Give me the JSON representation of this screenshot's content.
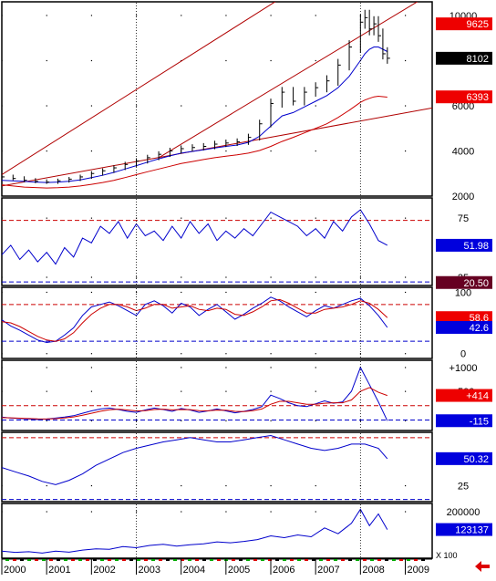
{
  "colors": {
    "price": "#000000",
    "ma_fast": "#0000cc",
    "ma_slow": "#cc0000",
    "trend": "#b00000",
    "dotted": "#000000",
    "badge_red": "#ee0000",
    "badge_black": "#000000",
    "badge_blue": "#0000dd",
    "badge_maroon": "#660022",
    "arrow": "#dd0000"
  },
  "xaxis": {
    "labels": [
      "2000",
      "2001",
      "2002",
      "2003",
      "2004",
      "2005",
      "2006",
      "2007",
      "2008",
      "2009"
    ],
    "unit_label": "X 100",
    "range": [
      2000.0,
      2009.6
    ]
  },
  "chart_data": [
    {
      "type": "line",
      "name": "price",
      "yrange": [
        2000,
        10600
      ],
      "yticks": [
        "10000",
        "8000",
        "6000",
        "4000",
        "2000"
      ],
      "ytick_values": [
        10000,
        8000,
        6000,
        4000,
        2000
      ],
      "badges": [
        {
          "text": "9625",
          "value": 9625,
          "color": "badge_red"
        },
        {
          "text": "8102",
          "value": 8102,
          "color": "badge_black"
        },
        {
          "text": "6393",
          "value": 6393,
          "color": "badge_red"
        }
      ],
      "x": [
        2000.0,
        2000.25,
        2000.5,
        2000.75,
        2001.0,
        2001.25,
        2001.5,
        2001.75,
        2002.0,
        2002.25,
        2002.5,
        2002.75,
        2003.0,
        2003.25,
        2003.5,
        2003.75,
        2004.0,
        2004.25,
        2004.5,
        2004.75,
        2005.0,
        2005.25,
        2005.5,
        2005.75,
        2006.0,
        2006.25,
        2006.5,
        2006.75,
        2007.0,
        2007.25,
        2007.5,
        2007.75,
        2008.0,
        2008.1,
        2008.2,
        2008.3,
        2008.4,
        2008.5,
        2008.6
      ],
      "close": [
        2850,
        2780,
        2700,
        2650,
        2620,
        2680,
        2750,
        2850,
        3000,
        3120,
        3250,
        3400,
        3550,
        3700,
        3850,
        4000,
        4100,
        4150,
        4200,
        4300,
        4350,
        4400,
        4600,
        5200,
        6100,
        6600,
        6200,
        6600,
        6800,
        7100,
        7800,
        8600,
        9700,
        9900,
        9400,
        9625,
        9100,
        8300,
        8102
      ],
      "series": [
        {
          "name": "ma_fast",
          "values": [
            2700,
            2680,
            2650,
            2620,
            2600,
            2620,
            2660,
            2720,
            2820,
            2920,
            3050,
            3200,
            3350,
            3500,
            3650,
            3780,
            3900,
            3980,
            4050,
            4130,
            4200,
            4260,
            4380,
            4650,
            5100,
            5550,
            5700,
            5950,
            6200,
            6450,
            6800,
            7300,
            8000,
            8300,
            8500,
            8600,
            8600,
            8500,
            8400
          ]
        },
        {
          "name": "ma_slow",
          "values": [
            2500,
            2450,
            2400,
            2380,
            2360,
            2370,
            2400,
            2450,
            2520,
            2600,
            2700,
            2820,
            2950,
            3080,
            3200,
            3320,
            3440,
            3530,
            3620,
            3700,
            3770,
            3830,
            3900,
            4020,
            4200,
            4420,
            4600,
            4800,
            5000,
            5200,
            5480,
            5800,
            6150,
            6250,
            6330,
            6393,
            6420,
            6400,
            6380
          ]
        }
      ],
      "trendlines": [
        {
          "x": [
            2000.0,
            2009.6
          ],
          "y": [
            2950,
            15000
          ]
        },
        {
          "x": [
            2003.5,
            2009.6
          ],
          "y": [
            3700,
            11000
          ]
        },
        {
          "x": [
            2000.0,
            2009.6
          ],
          "y": [
            2450,
            5900
          ]
        }
      ]
    },
    {
      "type": "line",
      "name": "panel2",
      "yrange": [
        18,
        92
      ],
      "yticks": [
        "75",
        "25"
      ],
      "ytick_values": [
        75,
        25
      ],
      "ref_lines": [
        {
          "value": 73,
          "color": "ma_slow"
        },
        {
          "value": 21,
          "color": "ma_fast"
        }
      ],
      "badges": [
        {
          "text": "51.98",
          "value": 51.98,
          "color": "badge_blue"
        },
        {
          "text": "20.50",
          "value": 20.5,
          "color": "badge_maroon"
        }
      ],
      "x": [
        2000.0,
        2000.2,
        2000.4,
        2000.6,
        2000.8,
        2001.0,
        2001.2,
        2001.4,
        2001.6,
        2001.8,
        2002.0,
        2002.2,
        2002.4,
        2002.6,
        2002.8,
        2003.0,
        2003.2,
        2003.4,
        2003.6,
        2003.8,
        2004.0,
        2004.2,
        2004.4,
        2004.6,
        2004.8,
        2005.0,
        2005.2,
        2005.4,
        2005.6,
        2005.8,
        2006.0,
        2006.2,
        2006.4,
        2006.6,
        2006.8,
        2007.0,
        2007.2,
        2007.4,
        2007.6,
        2007.8,
        2008.0,
        2008.2,
        2008.4,
        2008.6
      ],
      "series": [
        {
          "name": "line",
          "values": [
            44,
            52,
            40,
            48,
            38,
            46,
            36,
            50,
            42,
            58,
            54,
            68,
            62,
            72,
            58,
            70,
            60,
            64,
            56,
            68,
            58,
            72,
            62,
            70,
            56,
            64,
            58,
            66,
            60,
            70,
            80,
            76,
            72,
            68,
            60,
            66,
            58,
            72,
            64,
            76,
            82,
            70,
            56,
            51.98
          ]
        }
      ]
    },
    {
      "type": "line",
      "name": "panel3",
      "yrange": [
        -8,
        108
      ],
      "yticks": [
        "100",
        "0"
      ],
      "ytick_values": [
        100,
        0
      ],
      "ref_lines": [
        {
          "value": 80,
          "color": "ma_slow"
        },
        {
          "value": 20,
          "color": "ma_fast"
        }
      ],
      "badges": [
        {
          "text": "58.6",
          "value": 58.6,
          "color": "badge_red"
        },
        {
          "text": "42.6",
          "value": 42.6,
          "color": "badge_blue"
        }
      ],
      "x": [
        2000.0,
        2000.2,
        2000.4,
        2000.6,
        2000.8,
        2001.0,
        2001.2,
        2001.4,
        2001.6,
        2001.8,
        2002.0,
        2002.2,
        2002.4,
        2002.6,
        2002.8,
        2003.0,
        2003.2,
        2003.4,
        2003.6,
        2003.8,
        2004.0,
        2004.2,
        2004.4,
        2004.6,
        2004.8,
        2005.0,
        2005.2,
        2005.4,
        2005.6,
        2005.8,
        2006.0,
        2006.2,
        2006.4,
        2006.6,
        2006.8,
        2007.0,
        2007.2,
        2007.4,
        2007.6,
        2007.8,
        2008.0,
        2008.2,
        2008.4,
        2008.6
      ],
      "series": [
        {
          "name": "k",
          "values": [
            55,
            45,
            38,
            30,
            22,
            18,
            20,
            30,
            42,
            62,
            76,
            80,
            84,
            78,
            70,
            62,
            80,
            86,
            78,
            66,
            82,
            76,
            62,
            72,
            80,
            68,
            56,
            64,
            74,
            82,
            92,
            86,
            76,
            68,
            60,
            70,
            78,
            74,
            80,
            86,
            90,
            78,
            62,
            42.6
          ]
        },
        {
          "name": "d",
          "values": [
            52,
            50,
            44,
            36,
            28,
            22,
            20,
            24,
            34,
            50,
            64,
            74,
            80,
            80,
            76,
            70,
            74,
            80,
            80,
            74,
            76,
            78,
            72,
            70,
            74,
            72,
            64,
            62,
            68,
            76,
            86,
            88,
            82,
            74,
            66,
            66,
            72,
            74,
            76,
            80,
            86,
            82,
            72,
            58.6
          ]
        }
      ]
    },
    {
      "type": "line",
      "name": "panel4",
      "yrange": [
        -320,
        1150
      ],
      "yticks": [
        "+1000",
        "+500",
        "-115"
      ],
      "ytick_values": [
        1000,
        500,
        -115
      ],
      "ref_lines": [
        {
          "value": 200,
          "color": "ma_slow"
        },
        {
          "value": -100,
          "color": "ma_fast"
        }
      ],
      "badges": [
        {
          "text": "+414",
          "value": 414,
          "color": "badge_red"
        },
        {
          "text": "-115",
          "value": -115,
          "color": "badge_blue"
        }
      ],
      "x": [
        2000.0,
        2000.2,
        2000.4,
        2000.6,
        2000.8,
        2001.0,
        2001.2,
        2001.4,
        2001.6,
        2001.8,
        2002.0,
        2002.2,
        2002.4,
        2002.6,
        2002.8,
        2003.0,
        2003.2,
        2003.4,
        2003.6,
        2003.8,
        2004.0,
        2004.2,
        2004.4,
        2004.6,
        2004.8,
        2005.0,
        2005.2,
        2005.4,
        2005.6,
        2005.8,
        2006.0,
        2006.2,
        2006.4,
        2006.6,
        2006.8,
        2007.0,
        2007.2,
        2007.4,
        2007.6,
        2007.8,
        2008.0,
        2008.2,
        2008.4,
        2008.6
      ],
      "series": [
        {
          "name": "osc",
          "values": [
            -40,
            -60,
            -70,
            -80,
            -90,
            -80,
            -60,
            -40,
            -10,
            40,
            90,
            130,
            150,
            120,
            80,
            60,
            110,
            150,
            120,
            80,
            140,
            110,
            60,
            90,
            130,
            90,
            50,
            80,
            120,
            180,
            420,
            350,
            260,
            200,
            180,
            240,
            300,
            250,
            280,
            500,
            1000,
            640,
            280,
            -115
          ]
        },
        {
          "name": "signal",
          "values": [
            -50,
            -55,
            -62,
            -70,
            -78,
            -80,
            -72,
            -58,
            -36,
            0,
            40,
            82,
            116,
            126,
            110,
            90,
            96,
            120,
            126,
            112,
            120,
            118,
            96,
            92,
            108,
            104,
            80,
            78,
            96,
            130,
            230,
            290,
            290,
            260,
            230,
            230,
            250,
            260,
            260,
            320,
            500,
            580,
            480,
            414
          ]
        }
      ]
    },
    {
      "type": "line",
      "name": "panel5",
      "yrange": [
        10,
        75
      ],
      "yticks": [
        "25"
      ],
      "ytick_values": [
        25
      ],
      "ref_lines": [
        {
          "value": 70,
          "color": "ma_slow"
        },
        {
          "value": 12,
          "color": "ma_fast"
        }
      ],
      "badges": [
        {
          "text": "50.32",
          "value": 50.32,
          "color": "badge_blue"
        }
      ],
      "x": [
        2000.0,
        2000.3,
        2000.6,
        2000.9,
        2001.2,
        2001.5,
        2001.8,
        2002.1,
        2002.4,
        2002.7,
        2003.0,
        2003.3,
        2003.6,
        2003.9,
        2004.2,
        2004.5,
        2004.8,
        2005.1,
        2005.4,
        2005.7,
        2006.0,
        2006.3,
        2006.6,
        2006.9,
        2007.2,
        2007.5,
        2007.8,
        2008.1,
        2008.4,
        2008.6
      ],
      "series": [
        {
          "name": "line",
          "values": [
            42,
            38,
            34,
            29,
            26,
            30,
            36,
            44,
            50,
            56,
            60,
            63,
            66,
            68,
            70,
            68,
            66,
            66,
            68,
            70,
            72,
            68,
            64,
            60,
            58,
            60,
            64,
            64,
            60,
            50.32
          ]
        }
      ]
    },
    {
      "type": "line",
      "name": "panel6",
      "yrange": [
        0,
        235000
      ],
      "yticks": [
        "200000"
      ],
      "ytick_values": [
        200000
      ],
      "badges": [
        {
          "text": "123137",
          "value": 123137,
          "color": "badge_blue"
        }
      ],
      "x": [
        2000.0,
        2000.3,
        2000.6,
        2000.9,
        2001.2,
        2001.5,
        2001.8,
        2002.1,
        2002.4,
        2002.7,
        2003.0,
        2003.3,
        2003.6,
        2003.9,
        2004.2,
        2004.5,
        2004.8,
        2005.1,
        2005.4,
        2005.7,
        2006.0,
        2006.3,
        2006.6,
        2006.9,
        2007.2,
        2007.5,
        2007.8,
        2008.0,
        2008.2,
        2008.4,
        2008.6
      ],
      "series": [
        {
          "name": "line",
          "values": [
            30000,
            25000,
            28000,
            22000,
            30000,
            26000,
            35000,
            40000,
            38000,
            50000,
            45000,
            55000,
            60000,
            52000,
            58000,
            62000,
            70000,
            66000,
            72000,
            80000,
            96000,
            88000,
            100000,
            92000,
            130000,
            105000,
            150000,
            210000,
            140000,
            190000,
            123137
          ]
        }
      ]
    }
  ]
}
